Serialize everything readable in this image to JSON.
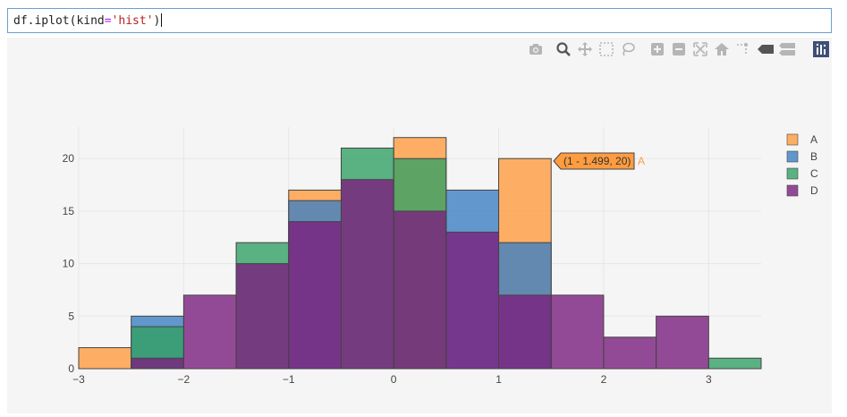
{
  "cell": {
    "code_parts": [
      "df.iplot(kind",
      "=",
      "'hist'",
      ")"
    ]
  },
  "modebar": {
    "icons": [
      "camera-icon",
      "zoom-icon",
      "pan-icon",
      "box-select-icon",
      "lasso-icon",
      "zoom-in-icon",
      "zoom-out-icon",
      "autoscale-icon",
      "reset-axes-icon",
      "spike-lines-icon",
      "hover-closest-icon",
      "hover-compare-icon",
      "plotly-logo-icon"
    ]
  },
  "colors": {
    "A": "#ff9c40",
    "B": "#3d7fc4",
    "C": "#33a064",
    "D": "#7a1f7e",
    "panel": "#f5f5f5",
    "grid": "#e6e6e6"
  },
  "tooltip": {
    "text": "(1 - 1.499, 20)",
    "series": "A"
  },
  "chart_data": {
    "type": "bar",
    "bin_edges": [
      -3,
      -2.5,
      -2,
      -1.5,
      -1,
      -0.5,
      0,
      0.5,
      1,
      1.5,
      2,
      2.5,
      3,
      3.5
    ],
    "series": [
      {
        "name": "A",
        "values": [
          2,
          0,
          0,
          0,
          17,
          0,
          22,
          0,
          20,
          0,
          0,
          0,
          0
        ]
      },
      {
        "name": "B",
        "values": [
          0,
          5,
          0,
          0,
          16,
          0,
          0,
          17,
          12,
          0,
          0,
          0,
          0
        ]
      },
      {
        "name": "C",
        "values": [
          0,
          4,
          0,
          12,
          0,
          21,
          20,
          0,
          0,
          0,
          0,
          0,
          1
        ]
      },
      {
        "name": "D",
        "values": [
          0,
          1,
          7,
          10,
          14,
          18,
          15,
          13,
          7,
          7,
          3,
          5,
          0
        ]
      }
    ],
    "xlim": [
      -3,
      3.5
    ],
    "ylim": [
      0,
      23
    ],
    "x_ticks": [
      -3,
      -2,
      -1,
      0,
      1,
      2,
      3
    ],
    "x_tick_labels": [
      "−3",
      "−2",
      "−1",
      "0",
      "1",
      "2",
      "3"
    ],
    "y_ticks": [
      0,
      5,
      10,
      15,
      20
    ],
    "y_tick_labels": [
      "0",
      "5",
      "10",
      "15",
      "20"
    ],
    "bar_opacity": 0.8,
    "barmode": "overlay",
    "grid": true,
    "legend_position": "top-right",
    "legend": [
      "A",
      "B",
      "C",
      "D"
    ]
  }
}
